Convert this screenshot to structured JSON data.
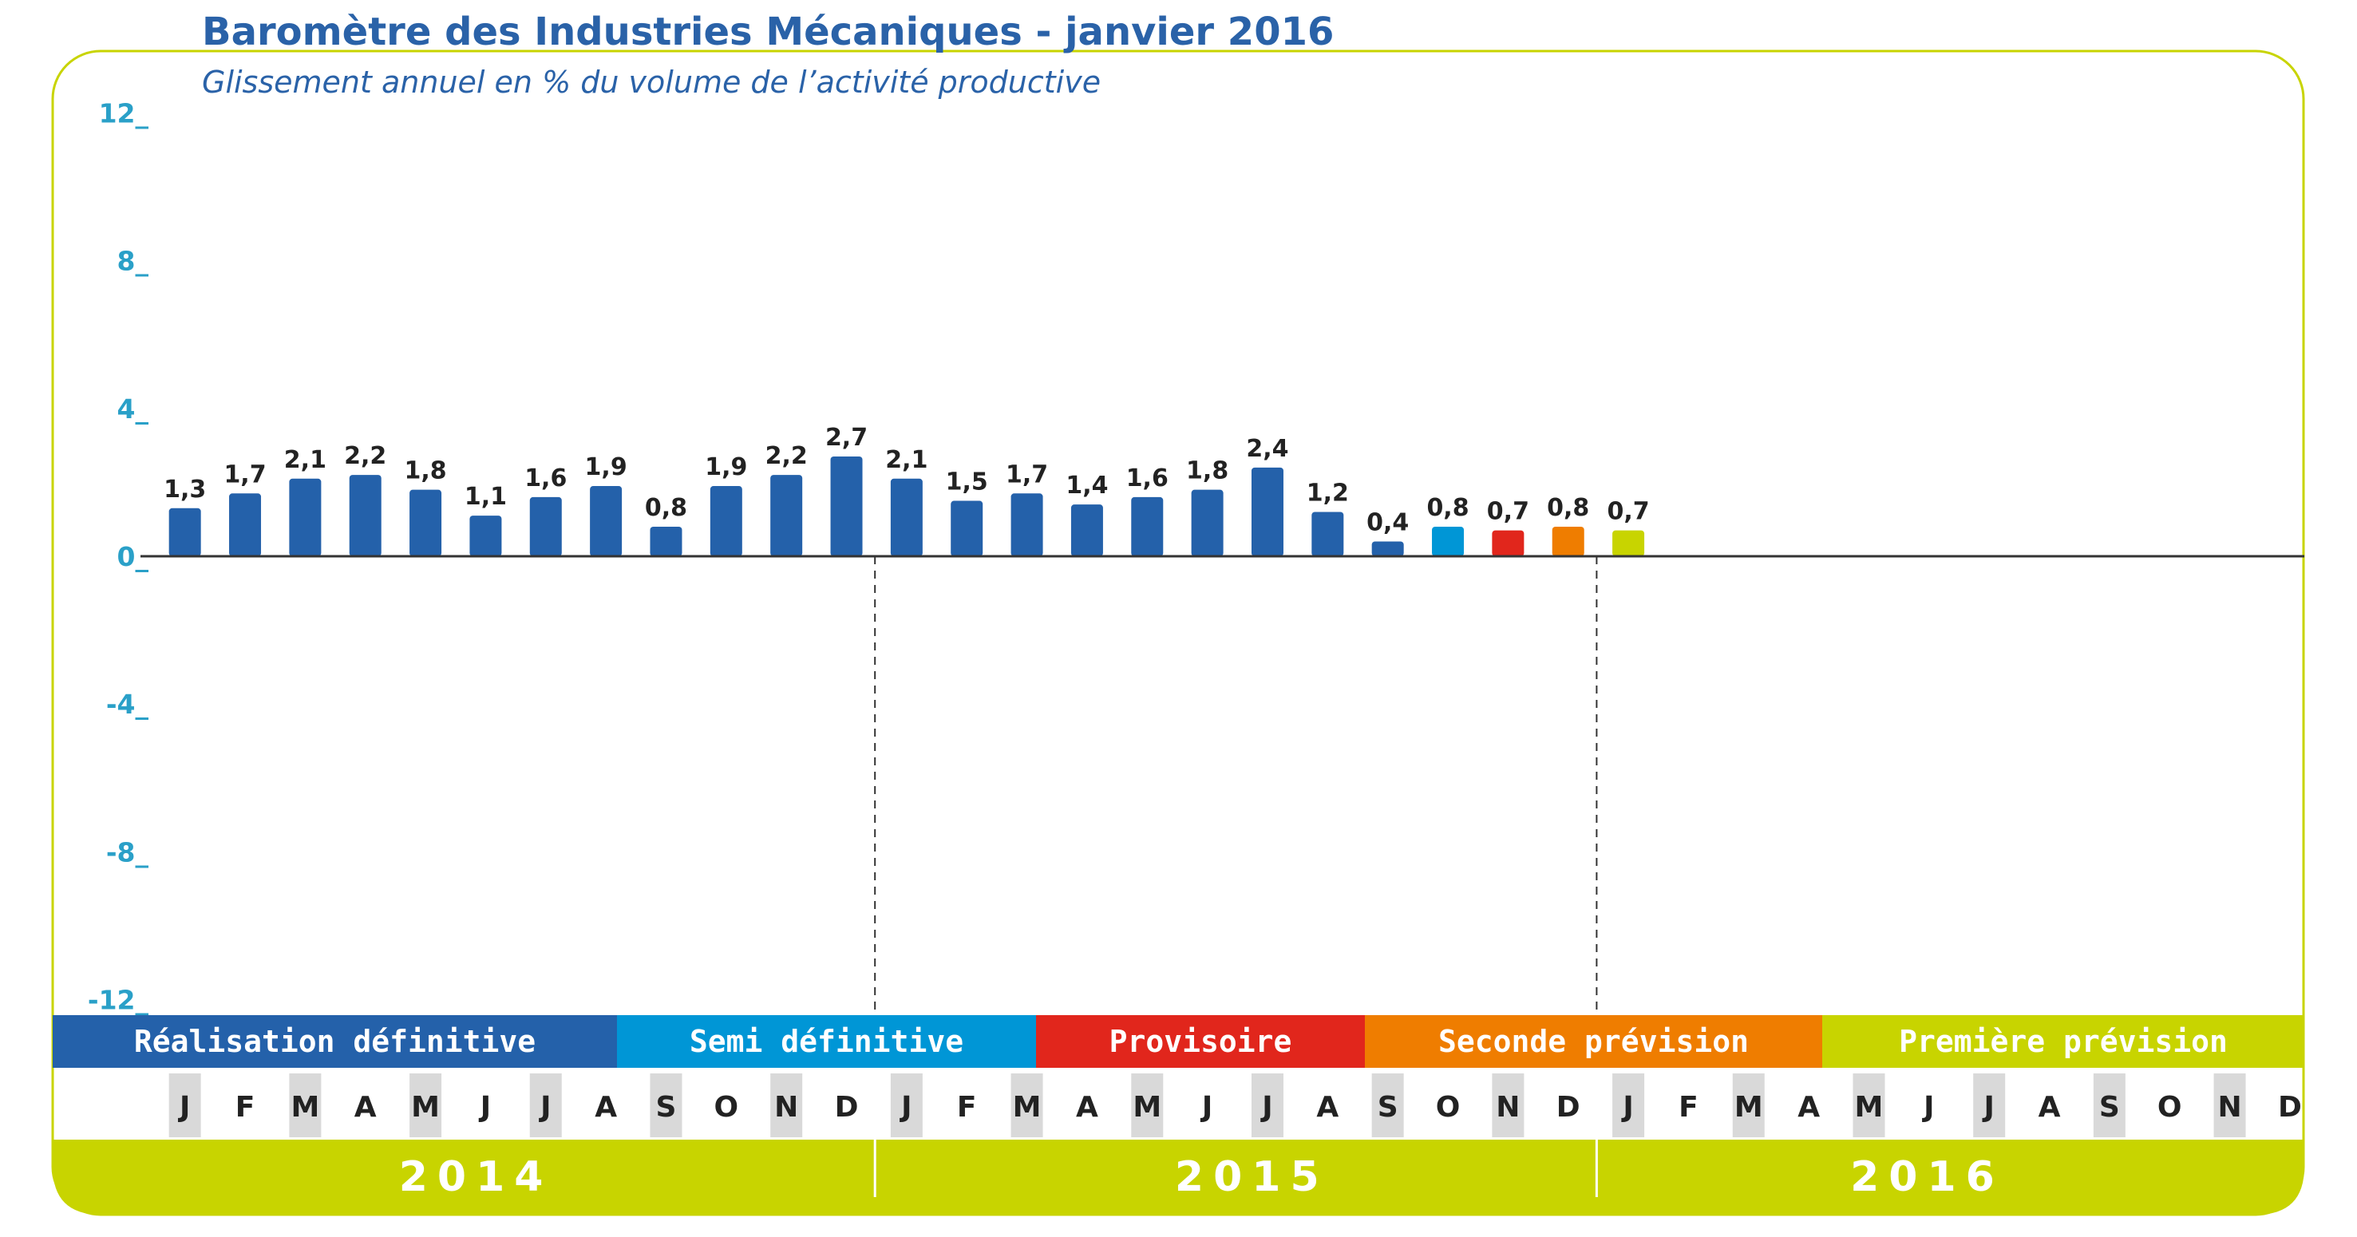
{
  "title": "Baromètre des Industries Mécaniques - janvier 2016",
  "subtitle": "Glissement annuel en % du volume de l’activité productive",
  "colors": {
    "frame": "#c8d400",
    "blue": "#2461aa",
    "cyan": "#0096d6",
    "red": "#e1261c",
    "orange": "#ef7d00",
    "lime": "#c8d400",
    "month_shade": "#d9d9d9",
    "tick": "#2aa0c8"
  },
  "phases": [
    {
      "label": "Réalisation définitive",
      "color": "#2461aa"
    },
    {
      "label": "Semi définitive",
      "color": "#0096d6"
    },
    {
      "label": "Provisoire",
      "color": "#e1261c"
    },
    {
      "label": "Seconde prévision",
      "color": "#ef7d00"
    },
    {
      "label": "Première prévision",
      "color": "#c8d400"
    }
  ],
  "years": [
    "2014",
    "2015",
    "2016"
  ],
  "months": [
    "J",
    "F",
    "M",
    "A",
    "M",
    "J",
    "J",
    "A",
    "S",
    "O",
    "N",
    "D",
    "J",
    "F",
    "M",
    "A",
    "M",
    "J",
    "J",
    "A",
    "S",
    "O",
    "N",
    "D",
    "J",
    "F",
    "M",
    "A",
    "M",
    "J",
    "J",
    "A",
    "S",
    "O",
    "N",
    "D"
  ],
  "chart_data": {
    "type": "bar",
    "title": "Baromètre des Industries Mécaniques - janvier 2016",
    "subtitle": "Glissement annuel en % du volume de l’activité productive",
    "ylim": [
      -12,
      12
    ],
    "yticks": [
      12,
      8,
      4,
      0,
      -4,
      -8,
      -12
    ],
    "ytick_labels": [
      "12_",
      "8_",
      "4_",
      "0_",
      "-4_",
      "-8_",
      "-12_"
    ],
    "categories": [
      "J 2014",
      "F 2014",
      "M 2014",
      "A 2014",
      "M 2014",
      "J 2014",
      "J 2014",
      "A 2014",
      "S 2014",
      "O 2014",
      "N 2014",
      "D 2014",
      "J 2015",
      "F 2015",
      "M 2015",
      "A 2015",
      "M 2015",
      "J 2015",
      "J 2015",
      "A 2015",
      "S 2015",
      "O 2015",
      "N 2015",
      "D 2015",
      "J 2016"
    ],
    "values": [
      1.3,
      1.7,
      2.1,
      2.2,
      1.8,
      1.1,
      1.6,
      1.9,
      0.8,
      1.9,
      2.2,
      2.7,
      2.1,
      1.5,
      1.7,
      1.4,
      1.6,
      1.8,
      2.4,
      1.2,
      0.4,
      0.8,
      0.7,
      0.8,
      0.7
    ],
    "value_labels": [
      "1,3",
      "1,7",
      "2,1",
      "2,2",
      "1,8",
      "1,1",
      "1,6",
      "1,9",
      "0,8",
      "1,9",
      "2,2",
      "2,7",
      "2,1",
      "1,5",
      "1,7",
      "1,4",
      "1,6",
      "1,8",
      "2,4",
      "1,2",
      "0,4",
      "0,8",
      "0,7",
      "0,8",
      "0,7"
    ],
    "bar_colors": [
      "#2461aa",
      "#2461aa",
      "#2461aa",
      "#2461aa",
      "#2461aa",
      "#2461aa",
      "#2461aa",
      "#2461aa",
      "#2461aa",
      "#2461aa",
      "#2461aa",
      "#2461aa",
      "#2461aa",
      "#2461aa",
      "#2461aa",
      "#2461aa",
      "#2461aa",
      "#2461aa",
      "#2461aa",
      "#2461aa",
      "#2461aa",
      "#0096d6",
      "#e1261c",
      "#ef7d00",
      "#c8d400"
    ],
    "grid": false
  }
}
